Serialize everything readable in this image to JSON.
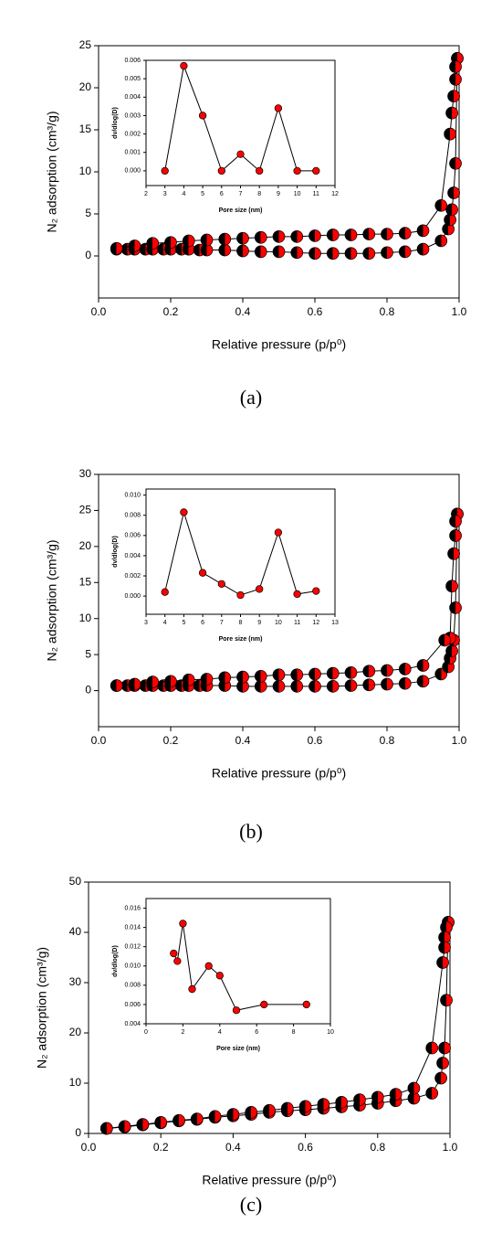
{
  "chart_data": [
    {
      "type": "line",
      "xlabel": "Relative pressure (p/p⁰)",
      "ylabel": "N₂ adsorption (cm³/g)",
      "caption": "(a)",
      "xlim": [
        0,
        1
      ],
      "xticks": [
        {
          "value": 0,
          "label": "0.0"
        },
        0.2,
        0.4,
        0.6,
        0.8,
        {
          "value": 1,
          "label": "1.0"
        }
      ],
      "ylim": [
        -5,
        25
      ],
      "yticks": [
        0,
        5,
        10,
        15,
        20,
        25
      ],
      "series": [
        {
          "color": "#ff0000",
          "edge_color": "#000000",
          "x": [
            0.05,
            0.08,
            0.1,
            0.13,
            0.15,
            0.18,
            0.2,
            0.23,
            0.25,
            0.28,
            0.3,
            0.35,
            0.4,
            0.45,
            0.5,
            0.55,
            0.6,
            0.65,
            0.7,
            0.75,
            0.8,
            0.85,
            0.9,
            0.95,
            0.97,
            0.975,
            0.98,
            0.985,
            0.99,
            0.995
          ],
          "values": [
            0.8,
            0.8,
            0.8,
            0.8,
            0.8,
            0.8,
            0.8,
            0.8,
            0.8,
            0.7,
            0.7,
            0.7,
            0.6,
            0.5,
            0.5,
            0.4,
            0.3,
            0.3,
            0.3,
            0.3,
            0.4,
            0.5,
            0.8,
            1.8,
            3.2,
            4.3,
            5.5,
            7.5,
            11,
            23.5
          ]
        },
        {
          "color": "#ff0000",
          "edge_color": "#000000",
          "x": [
            0.995,
            0.99,
            0.99,
            0.985,
            0.98,
            0.975,
            0.95,
            0.9,
            0.85,
            0.8,
            0.75,
            0.7,
            0.65,
            0.6,
            0.55,
            0.5,
            0.45,
            0.4,
            0.35,
            0.3,
            0.25,
            0.2,
            0.15,
            0.1,
            0.05
          ],
          "values": [
            23.5,
            22.5,
            21,
            19,
            17,
            14.5,
            6,
            3,
            2.7,
            2.6,
            2.6,
            2.5,
            2.5,
            2.4,
            2.3,
            2.3,
            2.2,
            2.1,
            2.0,
            1.9,
            1.8,
            1.6,
            1.5,
            1.2,
            0.9
          ]
        }
      ]
    },
    {
      "type": "line",
      "xlabel": "Pore size (nm)",
      "ylabel": "dv/dlog(D)",
      "xlim": [
        2,
        12
      ],
      "xticks": [
        2,
        3,
        4,
        5,
        6,
        7,
        8,
        9,
        10,
        11,
        12
      ],
      "ylim": [
        -0.0008,
        0.006
      ],
      "yticks": [
        {
          "value": 0,
          "label": "0.000"
        },
        {
          "value": 0.001,
          "label": "0.001"
        },
        {
          "value": 0.002,
          "label": "0.002"
        },
        {
          "value": 0.003,
          "label": "0.003"
        },
        {
          "value": 0.004,
          "label": "0.004"
        },
        {
          "value": 0.005,
          "label": "0.005"
        },
        {
          "value": 0.006,
          "label": "0.006"
        }
      ],
      "series": [
        {
          "color": "#ff0000",
          "x": [
            3,
            4,
            5,
            6,
            7,
            8,
            9,
            10,
            11
          ],
          "values": [
            0,
            0.0057,
            0.003,
            0,
            0.0009,
            0,
            0.0034,
            0,
            0
          ]
        }
      ]
    },
    {
      "type": "line",
      "xlabel": "Relative pressure (p/p⁰)",
      "ylabel": "N₂ adsorption (cm³/g)",
      "caption": "(b)",
      "xlim": [
        0,
        1
      ],
      "xticks": [
        {
          "value": 0,
          "label": "0.0"
        },
        0.2,
        0.4,
        0.6,
        0.8,
        {
          "value": 1,
          "label": "1.0"
        }
      ],
      "ylim": [
        -5,
        30
      ],
      "yticks": [
        0,
        5,
        10,
        15,
        20,
        25,
        30
      ],
      "series": [
        {
          "color": "#ff0000",
          "edge_color": "#000000",
          "x": [
            0.05,
            0.08,
            0.1,
            0.13,
            0.15,
            0.18,
            0.2,
            0.23,
            0.25,
            0.28,
            0.3,
            0.35,
            0.4,
            0.45,
            0.5,
            0.55,
            0.6,
            0.65,
            0.7,
            0.75,
            0.8,
            0.85,
            0.9,
            0.95,
            0.97,
            0.975,
            0.98,
            0.985,
            0.99,
            0.995
          ],
          "values": [
            0.7,
            0.7,
            0.7,
            0.7,
            0.7,
            0.7,
            0.7,
            0.7,
            0.7,
            0.7,
            0.7,
            0.7,
            0.6,
            0.6,
            0.6,
            0.6,
            0.6,
            0.6,
            0.7,
            0.8,
            0.9,
            1.0,
            1.3,
            2.3,
            3.3,
            4.5,
            5.5,
            7,
            11.5,
            24.5
          ]
        },
        {
          "color": "#ff0000",
          "edge_color": "#000000",
          "x": [
            0.995,
            0.99,
            0.99,
            0.985,
            0.98,
            0.975,
            0.96,
            0.9,
            0.85,
            0.8,
            0.75,
            0.7,
            0.65,
            0.6,
            0.55,
            0.5,
            0.45,
            0.4,
            0.35,
            0.3,
            0.25,
            0.2,
            0.15,
            0.1,
            0.05
          ],
          "values": [
            24.5,
            23.5,
            21.5,
            19,
            14.5,
            7.3,
            7,
            3.5,
            3.0,
            2.8,
            2.7,
            2.5,
            2.4,
            2.3,
            2.2,
            2.2,
            2.0,
            1.9,
            1.8,
            1.6,
            1.5,
            1.3,
            1.2,
            0.9,
            0.7
          ]
        }
      ]
    },
    {
      "type": "line",
      "xlabel": "Pore size (nm)",
      "ylabel": "dv/dlog(D)",
      "xlim": [
        3,
        13
      ],
      "xticks": [
        3,
        4,
        5,
        6,
        7,
        8,
        9,
        10,
        11,
        12,
        13
      ],
      "ylim": [
        -0.0018,
        0.0106
      ],
      "yticks": [
        {
          "value": 0,
          "label": "0.000"
        },
        {
          "value": 0.002,
          "label": "0.002"
        },
        {
          "value": 0.004,
          "label": "0.004"
        },
        {
          "value": 0.006,
          "label": "0.006"
        },
        {
          "value": 0.008,
          "label": "0.008"
        },
        {
          "value": 0.01,
          "label": "0.010"
        }
      ],
      "series": [
        {
          "color": "#ff0000",
          "x": [
            4,
            5,
            6,
            7,
            8,
            9,
            10,
            11,
            12
          ],
          "values": [
            0.0004,
            0.0083,
            0.0023,
            0.0012,
            0.0001,
            0.0007,
            0.0063,
            0.0002,
            0.0005
          ]
        }
      ]
    },
    {
      "type": "line",
      "xlabel": "Relative pressure (p/p⁰)",
      "ylabel": "N₂ adsorption (cm³/g)",
      "caption": "(c)",
      "xlim": [
        0,
        1
      ],
      "xticks": [
        {
          "value": 0,
          "label": "0.0"
        },
        0.2,
        0.4,
        0.6,
        0.8,
        {
          "value": 1,
          "label": "1.0"
        }
      ],
      "ylim": [
        0,
        50
      ],
      "yticks": [
        0,
        10,
        20,
        30,
        40,
        50
      ],
      "series": [
        {
          "color": "#ff0000",
          "edge_color": "#000000",
          "x": [
            0.05,
            0.1,
            0.15,
            0.2,
            0.25,
            0.3,
            0.35,
            0.4,
            0.45,
            0.5,
            0.55,
            0.6,
            0.65,
            0.7,
            0.75,
            0.8,
            0.85,
            0.9,
            0.95,
            0.975,
            0.98,
            0.985,
            0.99,
            0.995
          ],
          "values": [
            1.0,
            1.3,
            1.7,
            2.1,
            2.5,
            2.8,
            3.2,
            3.5,
            3.8,
            4.2,
            4.5,
            4.7,
            5.0,
            5.3,
            5.6,
            6.0,
            6.5,
            7.0,
            8.0,
            11,
            14,
            17,
            26.5,
            42
          ]
        },
        {
          "color": "#ff0000",
          "edge_color": "#000000",
          "x": [
            0.995,
            0.99,
            0.985,
            0.985,
            0.98,
            0.95,
            0.9,
            0.85,
            0.8,
            0.75,
            0.7,
            0.65,
            0.6,
            0.55,
            0.5,
            0.45,
            0.4,
            0.35,
            0.3,
            0.25,
            0.2,
            0.15,
            0.1,
            0.05
          ],
          "values": [
            42,
            41,
            39,
            37,
            34,
            17,
            9,
            7.8,
            7.2,
            6.7,
            6.2,
            5.8,
            5.4,
            5.0,
            4.6,
            4.2,
            3.8,
            3.4,
            2.9,
            2.6,
            2.2,
            1.8,
            1.4,
            1.0
          ]
        }
      ]
    },
    {
      "type": "line",
      "xlabel": "Pore size (nm)",
      "ylabel": "dv/dlog(D)",
      "xlim": [
        0,
        10
      ],
      "xticks": [
        0,
        2,
        4,
        6,
        8,
        10
      ],
      "ylim": [
        0.004,
        0.017
      ],
      "yticks": [
        {
          "value": 0.004,
          "label": "0.004"
        },
        {
          "value": 0.006,
          "label": "0.006"
        },
        {
          "value": 0.008,
          "label": "0.008"
        },
        {
          "value": 0.01,
          "label": "0.010"
        },
        {
          "value": 0.012,
          "label": "0.012"
        },
        {
          "value": 0.014,
          "label": "0.014"
        },
        {
          "value": 0.016,
          "label": "0.016"
        }
      ],
      "series": [
        {
          "color": "#ff0000",
          "x": [
            1.5,
            1.7,
            2.0,
            2.5,
            3.4,
            4.0,
            4.9,
            6.4,
            8.7
          ],
          "values": [
            0.0113,
            0.0105,
            0.0144,
            0.0076,
            0.01,
            0.009,
            0.0054,
            0.006,
            0.006
          ]
        }
      ]
    }
  ]
}
